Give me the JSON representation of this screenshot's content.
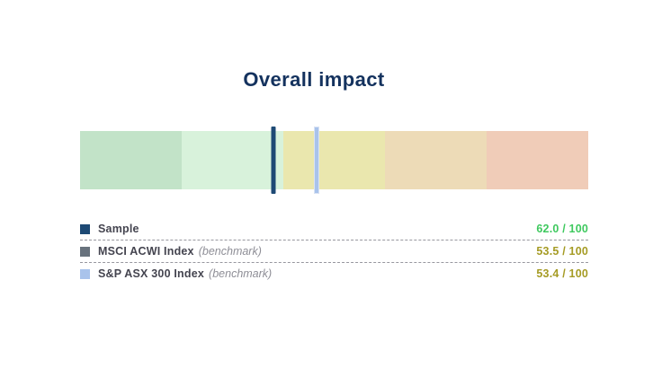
{
  "page": {
    "background": "#ffffff"
  },
  "title": {
    "text": "Overall impact",
    "color": "#14325e"
  },
  "legend": {
    "separator_color": "#97979f",
    "label_color": "#44444f",
    "qualifier_color": "#8e8e96"
  },
  "chart_data": {
    "type": "bullet-gauge",
    "title": "Overall impact",
    "orientation": "horizontal",
    "scale": {
      "min": 0,
      "max": 100,
      "high_values_on_left": true
    },
    "bands": [
      {
        "range": "80-100",
        "color": "#c2e3c8"
      },
      {
        "range": "60-80",
        "color": "#d8f2db"
      },
      {
        "range": "40-60",
        "color": "#eae7ae"
      },
      {
        "range": "20-40",
        "color": "#eddbb7"
      },
      {
        "range": "0-20",
        "color": "#f0ccb8"
      }
    ],
    "series": [
      {
        "name": "Sample",
        "qualifier": "",
        "value": 62.0,
        "out_of": 100,
        "value_display": "62.0 / 100",
        "marker_color": "#1e4a75",
        "marker_border": "",
        "value_color": "#3fc95f"
      },
      {
        "name": "MSCI ACWI Index",
        "qualifier": "(benchmark)",
        "value": 53.5,
        "out_of": 100,
        "value_display": "53.5 / 100",
        "marker_color": "#68727d",
        "marker_border": "#aab3bc",
        "value_color": "#a59b24"
      },
      {
        "name": "S&P ASX 300 Index",
        "qualifier": "(benchmark)",
        "value": 53.4,
        "out_of": 100,
        "value_display": "53.4 / 100",
        "marker_color": "#a9c3eb",
        "marker_border": "#d9e3f5",
        "value_color": "#a59b24"
      }
    ]
  }
}
